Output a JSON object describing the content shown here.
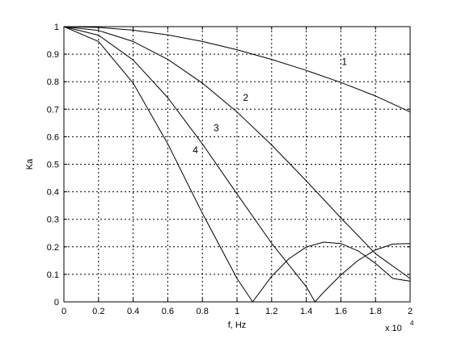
{
  "chart_data": {
    "type": "line",
    "xlabel": "f, Hz",
    "ylabel": "Ka",
    "x_multiplier": "x 10",
    "x_multiplier_exp": "4",
    "xlim": [
      0,
      2
    ],
    "ylim": [
      0,
      1
    ],
    "xticks": [
      "0",
      "0.2",
      "0.4",
      "0.6",
      "0.8",
      "1",
      "1.2",
      "1.4",
      "1.6",
      "1.8",
      "2"
    ],
    "yticks": [
      "0",
      "0.1",
      "0.2",
      "0.3",
      "0.4",
      "0.5",
      "0.6",
      "0.7",
      "0.8",
      "0.9",
      "1"
    ],
    "grid": true,
    "series": [
      {
        "name": "1",
        "x": [
          0,
          0.2,
          0.4,
          0.6,
          0.8,
          1.0,
          1.2,
          1.4,
          1.6,
          1.8,
          2.0
        ],
        "y": [
          1.0,
          0.997,
          0.987,
          0.97,
          0.946,
          0.916,
          0.881,
          0.841,
          0.797,
          0.748,
          0.69
        ]
      },
      {
        "name": "2",
        "x": [
          0,
          0.2,
          0.4,
          0.6,
          0.8,
          1.0,
          1.2,
          1.4,
          1.6,
          1.8,
          2.0
        ],
        "y": [
          1.0,
          0.986,
          0.946,
          0.881,
          0.795,
          0.69,
          0.57,
          0.44,
          0.305,
          0.175,
          0.085
        ]
      },
      {
        "name": "3",
        "x": [
          0,
          0.2,
          0.4,
          0.6,
          0.8,
          1.0,
          1.2,
          1.4,
          1.45,
          1.5,
          1.6,
          1.7,
          1.8,
          1.9,
          2.0
        ],
        "y": [
          1.0,
          0.969,
          0.879,
          0.742,
          0.574,
          0.392,
          0.213,
          0.055,
          0.0,
          0.035,
          0.098,
          0.151,
          0.189,
          0.21,
          0.212
        ]
      },
      {
        "name": "4",
        "x": [
          0,
          0.2,
          0.4,
          0.6,
          0.8,
          1.0,
          1.09,
          1.2,
          1.3,
          1.4,
          1.5,
          1.6,
          1.7,
          1.8,
          1.9,
          2.0
        ],
        "y": [
          1.0,
          0.946,
          0.795,
          0.574,
          0.322,
          0.085,
          0.0,
          0.093,
          0.157,
          0.199,
          0.217,
          0.212,
          0.185,
          0.14,
          0.085,
          0.075
        ]
      }
    ]
  }
}
